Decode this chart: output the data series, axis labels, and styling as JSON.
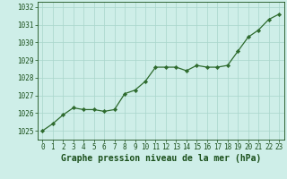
{
  "x": [
    0,
    1,
    2,
    3,
    4,
    5,
    6,
    7,
    8,
    9,
    10,
    11,
    12,
    13,
    14,
    15,
    16,
    17,
    18,
    19,
    20,
    21,
    22,
    23
  ],
  "y": [
    1025.0,
    1025.4,
    1025.9,
    1026.3,
    1026.2,
    1026.2,
    1026.1,
    1026.2,
    1027.1,
    1027.3,
    1027.8,
    1028.6,
    1028.6,
    1028.6,
    1028.4,
    1028.7,
    1028.6,
    1028.6,
    1028.7,
    1029.5,
    1030.3,
    1030.7,
    1031.3,
    1031.6
  ],
  "ylim": [
    1024.5,
    1032.3
  ],
  "xlim": [
    -0.5,
    23.5
  ],
  "yticks": [
    1025,
    1026,
    1027,
    1028,
    1029,
    1030,
    1031,
    1032
  ],
  "xticks": [
    0,
    1,
    2,
    3,
    4,
    5,
    6,
    7,
    8,
    9,
    10,
    11,
    12,
    13,
    14,
    15,
    16,
    17,
    18,
    19,
    20,
    21,
    22,
    23
  ],
  "xlabel": "Graphe pression niveau de la mer (hPa)",
  "line_color": "#2d6a2d",
  "marker": "D",
  "marker_size": 2.2,
  "bg_color": "#ceeee8",
  "grid_color": "#a8d5cb",
  "axis_label_color": "#1a4f1a",
  "tick_label_color": "#1a4f1a",
  "tick_label_fontsize": 5.5,
  "xlabel_fontsize": 7.0
}
